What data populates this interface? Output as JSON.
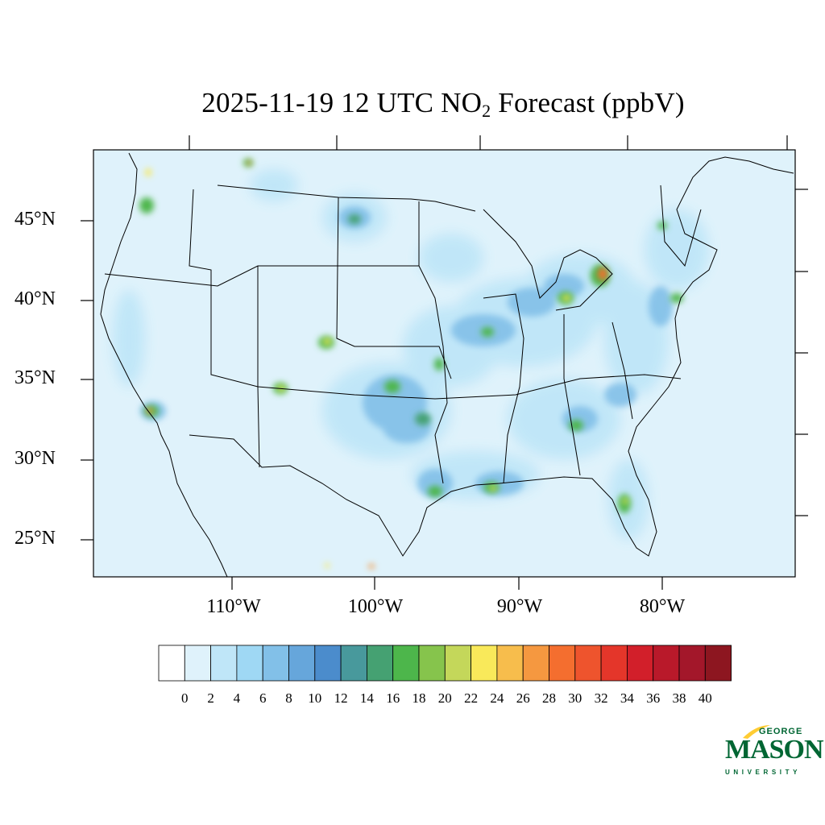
{
  "title": {
    "pre": "2025-11-19 12 UTC NO",
    "sub": "2",
    "post": " Forecast (ppbV)"
  },
  "axes": {
    "lat_labels": [
      "45°N",
      "40°N",
      "35°N",
      "30°N",
      "25°N"
    ],
    "lon_labels": [
      "110°W",
      "100°W",
      "90°W",
      "80°W"
    ]
  },
  "colorbar": {
    "labels": [
      "0",
      "2",
      "4",
      "6",
      "8",
      "10",
      "12",
      "14",
      "16",
      "18",
      "20",
      "22",
      "24",
      "26",
      "28",
      "30",
      "32",
      "34",
      "36",
      "38",
      "40"
    ],
    "colors": [
      "#ffffff",
      "#dff2fb",
      "#bfe6f8",
      "#9fd8f4",
      "#82c0e8",
      "#66a6db",
      "#4b8ccc",
      "#48999c",
      "#45a172",
      "#4db64b",
      "#86c44c",
      "#c4d75a",
      "#f9e95a",
      "#f7bd4c",
      "#f59840",
      "#f46e2f",
      "#ee542d",
      "#e4362a",
      "#d21f2a",
      "#b9192a",
      "#a3172a",
      "#8d1620"
    ]
  },
  "logo": {
    "line1": "GEORGE",
    "line2": "MASON",
    "line3": "UNIVERSITY"
  }
}
